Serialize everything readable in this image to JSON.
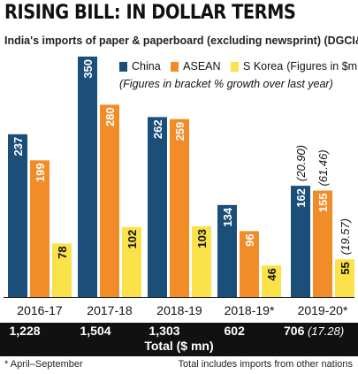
{
  "title": "RISING BILL: IN DOLLAR TERMS",
  "subtitle": "India's imports of paper & paperboard (excluding newsprint) (DGCI&S)",
  "legend_note": "(Figures in bracket % growth over last year)",
  "legend_unit_note": "(Figures in $mn)",
  "colors": {
    "China": "#1b4f7a",
    "ASEAN": "#f28c28",
    "S Korea": "#fbe14a"
  },
  "chart_data": {
    "type": "bar",
    "categories": [
      "2016-17",
      "2017-18",
      "2018-19",
      "2018-19*",
      "2019-20*"
    ],
    "series": [
      {
        "name": "China",
        "values": [
          237,
          350,
          262,
          134,
          162
        ],
        "labels": [
          "237",
          "350",
          "262",
          "134",
          "162"
        ]
      },
      {
        "name": "ASEAN",
        "values": [
          199,
          280,
          259,
          96,
          155
        ],
        "labels": [
          "199",
          "280",
          "259",
          "96",
          "155"
        ]
      },
      {
        "name": "S Korea",
        "values": [
          78,
          102,
          103,
          46,
          55
        ],
        "labels": [
          "78",
          "102",
          "103",
          "46",
          "55"
        ]
      }
    ],
    "growth_annotations": [
      {
        "category": "2019-20*",
        "series": "China",
        "text": "(20.90)"
      },
      {
        "category": "2019-20*",
        "series": "ASEAN",
        "text": "(61.46)"
      },
      {
        "category": "2019-20*",
        "series": "S Korea",
        "text": "(19.57)"
      }
    ],
    "totals": [
      {
        "category": "2016-17",
        "value": "1,228",
        "growth": ""
      },
      {
        "category": "2017-18",
        "value": "1,504",
        "growth": ""
      },
      {
        "category": "2018-19",
        "value": "1,303",
        "growth": ""
      },
      {
        "category": "2018-19*",
        "value": "602",
        "growth": ""
      },
      {
        "category": "2019-20*",
        "value": "706",
        "growth": "(17.28)"
      }
    ],
    "totals_label": "Total ($ mn)",
    "ylim": [
      0,
      350
    ]
  },
  "footnotes": {
    "left": "* April–September",
    "right": "Total includes imports from other nations"
  }
}
